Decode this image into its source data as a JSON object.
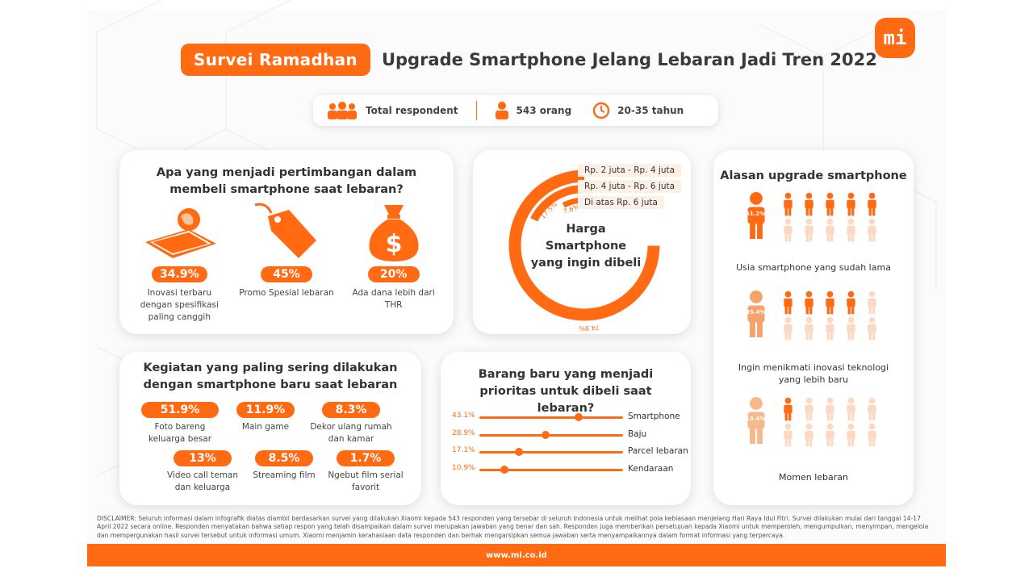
{
  "header": {
    "badge": "Survei Ramadhan",
    "headline": "Upgrade Smartphone Jelang Lebaran Jadi Tren 2022",
    "logo": "mi"
  },
  "respondents": {
    "label": "Total respondent",
    "count": "543 orang",
    "age": "20-35 tahun",
    "icons": [
      "group-icon",
      "person-icon",
      "clock-icon"
    ]
  },
  "consideration": {
    "title": "Apa yang menjadi pertimbangan dalam membeli smartphone saat lebaran?",
    "items": [
      {
        "pct": "34.9%",
        "label": "Inovasi terbaru dengan spesifikasi paling canggih",
        "icon": "phone-globe-icon"
      },
      {
        "pct": "45%",
        "label": "Promo Spesial lebaran",
        "icon": "price-tag-icon"
      },
      {
        "pct": "20%",
        "label": "Ada dana lebih dari THR",
        "icon": "money-bag-icon"
      }
    ]
  },
  "price": {
    "center": "Harga Smartphone yang ingin dibeli",
    "legend": [
      "Rp. 2 juta - Rp. 4 juta",
      "Rp. 4 juta - Rp. 6 juta",
      "Di atas Rp. 6 juta"
    ],
    "pct_labels": [
      "74.9%",
      "17.5%",
      "7.6%"
    ],
    "values": [
      74.9,
      17.5,
      7.6
    ]
  },
  "reasons": {
    "title": "Alasan upgrade smartphone",
    "items": [
      {
        "pct": "51.2%",
        "value": 51.2,
        "label": "Usia smartphone yang sudah lama"
      },
      {
        "pct": "35.4%",
        "value": 35.4,
        "label": "Ingin menikmati inovasi teknologi yang lebih baru"
      },
      {
        "pct": "13.4%",
        "value": 13.4,
        "label": "Momen lebaran"
      }
    ]
  },
  "activities": {
    "title": "Kegiatan yang paling sering dilakukan dengan smartphone baru saat lebaran",
    "items": [
      {
        "pct": "51.9%",
        "label": "Foto bareng keluarga besar"
      },
      {
        "pct": "11.9%",
        "label": "Main game"
      },
      {
        "pct": "8.3%",
        "label": "Dekor ulang rumah dan kamar"
      },
      {
        "pct": "13%",
        "label": "Video call teman dan keluarga"
      },
      {
        "pct": "8.5%",
        "label": "Streaming film"
      },
      {
        "pct": "1.7%",
        "label": "Ngebut film serial favorit"
      }
    ]
  },
  "priority": {
    "title": "Barang baru yang menjadi prioritas untuk dibeli saat lebaran?",
    "items": [
      {
        "pct": "43.1%",
        "value": 43.1,
        "label": "Smartphone"
      },
      {
        "pct": "28.9%",
        "value": 28.9,
        "label": "Baju"
      },
      {
        "pct": "17.1%",
        "value": 17.1,
        "label": "Parcel lebaran"
      },
      {
        "pct": "10.9%",
        "value": 10.9,
        "label": "Kendaraan"
      }
    ]
  },
  "disclaimer": "DISCLAIMER: Seluruh informasi dalam infografik diatas diambil berdasarkan survei yang dilakukan Xiaomi kepada 543 responden yang tersebar di seluruh Indonesia untuk melihat pola kebiasaan menjelang Hari Raya Idul Fitri. Survei dilakukan mulai dari tanggal 14-17 April 2022 secara online. Responden menyatakan bahwa setiap respon yang telah disampaikan dalam survei merupakan jawaban yang benar dan sah. Responden juga memberikan persetujuan kepada Xiaomi untuk memperoleh, mengumpulkan, menyimpan, mengelola dan mempergunakan hasil survei tersebut untuk informasi umum. Xiaomi menjamin kerahasiaan data responden dan berhak mengarsipkan semua jawaban serta menyampaikannya dalam format informasi yang terpercaya.",
  "footer": "www.mi.co.id",
  "colors": {
    "accent": "#ff6a13",
    "light": "#fcd9c2"
  }
}
